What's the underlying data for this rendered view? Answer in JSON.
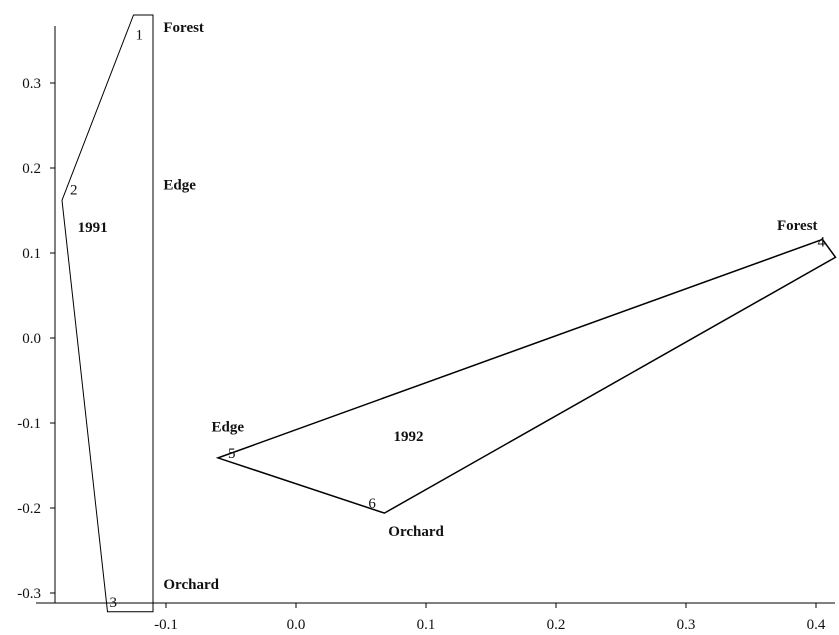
{
  "chart_data": {
    "type": "scatter",
    "title": "",
    "xlabel": "",
    "ylabel": "",
    "xlim": [
      -0.19,
      0.41
    ],
    "ylim": [
      -0.32,
      0.38
    ],
    "x_ticks": [
      -0.1,
      0.0,
      0.1,
      0.2,
      0.3,
      0.4
    ],
    "x_tick_labels": [
      "-0.1",
      "0.0",
      "0.1",
      "0.2",
      "0.3",
      "0.4"
    ],
    "y_ticks": [
      -0.3,
      -0.2,
      -0.1,
      0.0,
      0.1,
      0.2,
      0.3
    ],
    "y_tick_labels": [
      "-0.3",
      "-0.2",
      "-0.1",
      "0.0",
      "0.1",
      "0.2",
      "0.3"
    ],
    "grid": false,
    "points": [
      {
        "label": "1",
        "x": -0.125,
        "y": 0.375
      },
      {
        "label": "2",
        "x": -0.18,
        "y": 0.162
      },
      {
        "label": "3",
        "x": -0.145,
        "y": -0.319
      },
      {
        "label": "4",
        "x": 0.405,
        "y": 0.116
      },
      {
        "label": "5",
        "x": -0.06,
        "y": -0.141
      },
      {
        "label": "6",
        "x": 0.068,
        "y": -0.206
      }
    ],
    "groups": [
      {
        "name": "1991",
        "name_pos": {
          "x": -0.168,
          "y": 0.125
        },
        "vertices": [
          [
            -0.125,
            0.38
          ],
          [
            -0.11,
            0.38
          ],
          [
            -0.11,
            -0.322
          ],
          [
            -0.145,
            -0.322
          ],
          [
            -0.18,
            0.162
          ]
        ],
        "width": 1
      },
      {
        "name": "1992",
        "name_pos": {
          "x": 0.075,
          "y": -0.121
        },
        "vertices": [
          [
            0.405,
            0.116
          ],
          [
            0.415,
            0.095
          ],
          [
            0.068,
            -0.206
          ],
          [
            -0.06,
            -0.141
          ]
        ],
        "width": 1.5
      }
    ],
    "annotations": [
      {
        "text": "Forest",
        "x": -0.102,
        "y": 0.36
      },
      {
        "text": "Edge",
        "x": -0.102,
        "y": 0.175
      },
      {
        "text": "Orchard",
        "x": -0.102,
        "y": -0.295
      },
      {
        "text": "Forest",
        "x": 0.37,
        "y": 0.127
      },
      {
        "text": "Edge",
        "x": -0.065,
        "y": -0.11
      },
      {
        "text": "Orchard",
        "x": 0.071,
        "y": -0.233
      }
    ]
  }
}
